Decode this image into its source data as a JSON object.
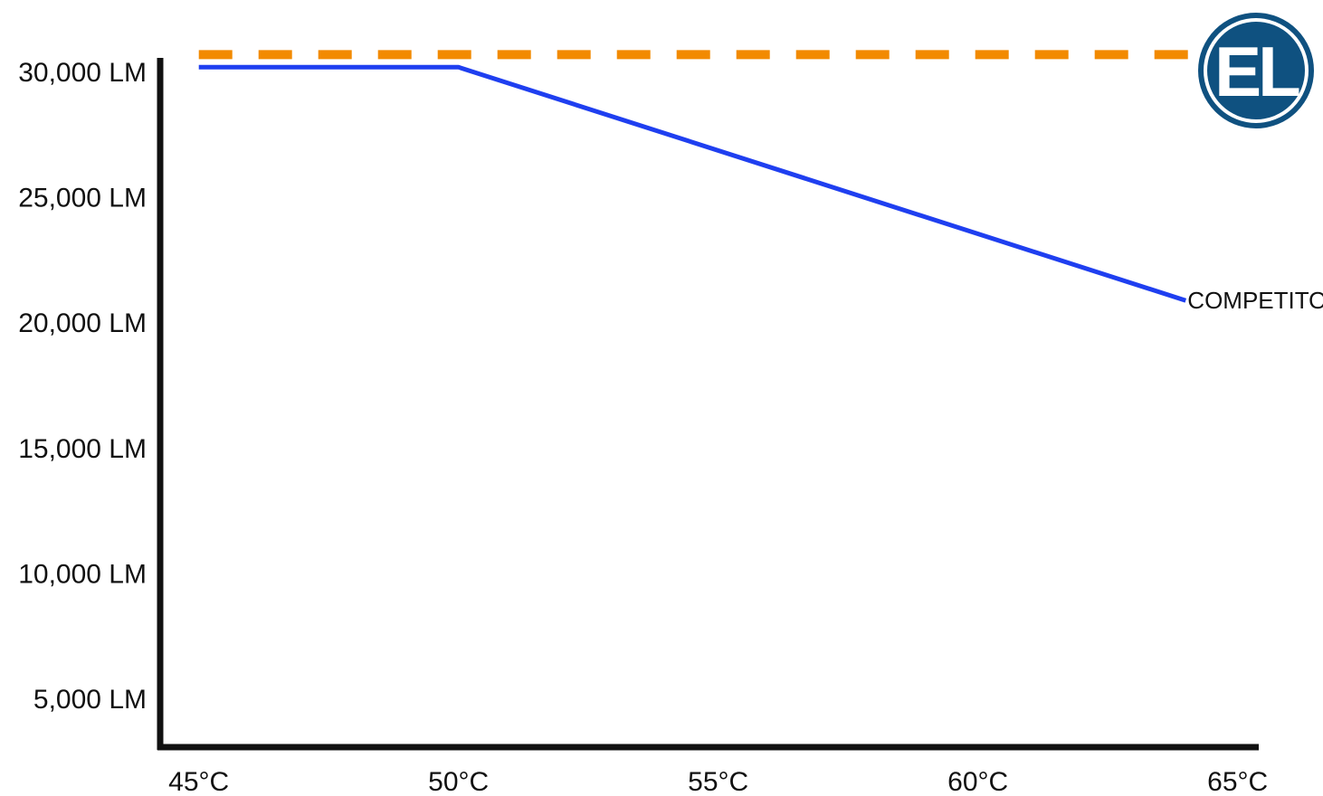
{
  "logo": {
    "text": "EL",
    "color": "#0f5180"
  },
  "chart_data": {
    "type": "line",
    "x": [
      45,
      50,
      55,
      60,
      65
    ],
    "x_tick_labels": [
      "45°C",
      "50°C",
      "55°C",
      "60°C",
      "65°C"
    ],
    "y_ticks": [
      5000,
      10000,
      15000,
      20000,
      25000,
      30000
    ],
    "y_tick_labels": [
      "5,000 LM",
      "10,000 LM",
      "15,000 LM",
      "20,000 LM",
      "25,000 LM",
      "30,000 LM"
    ],
    "xlim": [
      42,
      67
    ],
    "ylim": [
      1800,
      32500
    ],
    "grid": false,
    "series": [
      {
        "name": "",
        "color": "#f28a00",
        "style": "dashed",
        "points": [
          [
            45,
            30700
          ],
          [
            65,
            30700
          ]
        ]
      },
      {
        "name": "COMPETITORS",
        "color": "#1f3ff0",
        "style": "solid",
        "points": [
          [
            45,
            30200
          ],
          [
            50,
            30200
          ],
          [
            64,
            20900
          ]
        ]
      }
    ]
  }
}
